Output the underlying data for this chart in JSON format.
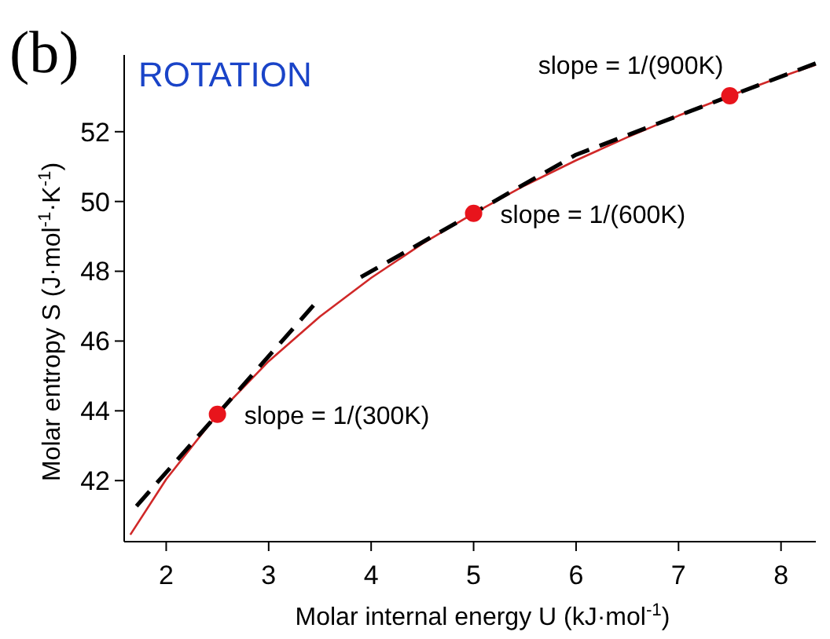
{
  "chart_data": {
    "type": "line",
    "title": "ROTATION",
    "xlabel": "Molar internal energy U (kJ·mol$^{-1}$)",
    "ylabel": "Molar entropy S (J·mol$^{-1}$·K$^{-1}$)",
    "xlim": [
      1.59,
      8.34
    ],
    "ylim": [
      40.25,
      54.2
    ],
    "xticks": [
      2,
      3,
      4,
      5,
      6,
      7,
      8
    ],
    "yticks": [
      42,
      44,
      46,
      48,
      50,
      52
    ],
    "grid": false,
    "series": [
      {
        "color": "#d02828",
        "line_style": "solid",
        "marker": "none",
        "x": [
          1.65,
          2,
          2.5,
          3,
          3.5,
          4,
          4.5,
          5,
          5.5,
          6,
          6.5,
          7,
          7.5,
          8,
          8.34
        ],
        "values": [
          40.45,
          42.04,
          43.9,
          45.42,
          46.7,
          47.81,
          48.79,
          49.66,
          50.46,
          51.18,
          51.84,
          52.46,
          53.03,
          53.57,
          53.92
        ]
      },
      {
        "color": "#000000",
        "line_style": "dashed",
        "marker": "none",
        "x": [
          1.71,
          3.44
        ],
        "values": [
          41.27,
          47.03
        ]
      },
      {
        "color": "#000000",
        "line_style": "dashed",
        "marker": "none",
        "x": [
          3.9,
          6.0,
          8.34
        ],
        "values": [
          47.83,
          51.34,
          53.96
        ]
      },
      {
        "type": "scatter",
        "color": "#e8141c",
        "marker": "circle",
        "x": [
          2.5,
          5,
          7.5
        ],
        "values": [
          43.9,
          49.66,
          53.03
        ]
      }
    ],
    "annotations": [
      "(b)",
      {
        "text": "slope = 1/(300K)",
        "x": 2.5,
        "y": 43.9
      },
      {
        "text": "slope = 1/(600K)",
        "x": 5,
        "y": 49.66
      },
      {
        "text": "slope = 1/(900K)",
        "x": 7.5,
        "y": 53.03
      }
    ]
  }
}
